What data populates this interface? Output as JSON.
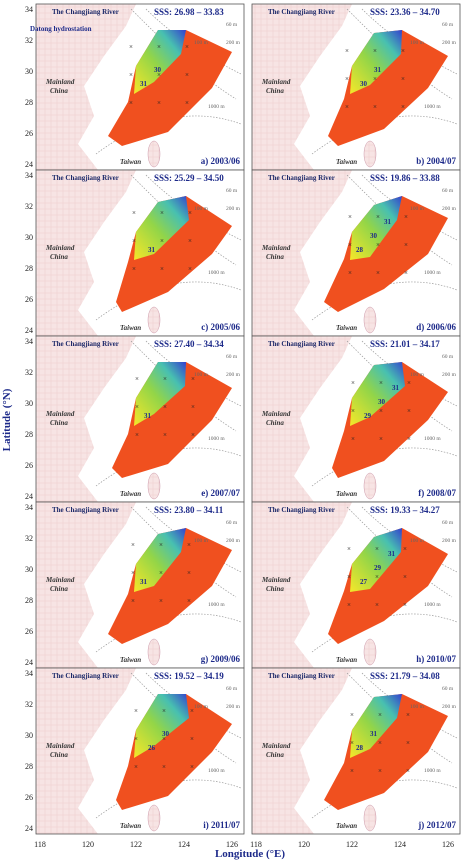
{
  "axes": {
    "y_label": "Latitude (°N)",
    "x_label": "Longitude (°E)",
    "y_ticks": [
      "24",
      "26",
      "28",
      "30",
      "32",
      "34"
    ],
    "x_ticks": [
      "118",
      "120",
      "122",
      "124",
      "126"
    ]
  },
  "common": {
    "river": "The Changjiang River",
    "mainland": [
      "Mainland",
      "China"
    ],
    "taiwan": "Taiwan",
    "depths": [
      "60 m",
      "100 m",
      "200 m",
      "1000 m"
    ],
    "station": "Datong hydrostation"
  },
  "panels": [
    {
      "sss": "SSS: 26.98 – 33.83",
      "label": "a) 2003/06",
      "contours": [
        "31",
        "30"
      ]
    },
    {
      "sss": "SSS: 23.36 – 34.70",
      "label": "b) 2004/07",
      "contours": [
        "30",
        "31"
      ]
    },
    {
      "sss": "SSS: 25.29 – 34.50",
      "label": "c) 2005/06",
      "contours": [
        "31"
      ]
    },
    {
      "sss": "SSS: 19.86 – 33.88",
      "label": "d) 2006/06",
      "contours": [
        "28",
        "30",
        "31"
      ]
    },
    {
      "sss": "SSS: 27.40 – 34.34",
      "label": "e) 2007/07",
      "contours": [
        "31"
      ]
    },
    {
      "sss": "SSS: 21.01 – 34.17",
      "label": "f) 2008/07",
      "contours": [
        "29",
        "30",
        "31"
      ]
    },
    {
      "sss": "SSS: 23.80 – 34.11",
      "label": "g) 2009/06",
      "contours": [
        "31"
      ]
    },
    {
      "sss": "SSS: 19.33 – 34.27",
      "label": "h) 2010/07",
      "contours": [
        "27",
        "29",
        "31"
      ]
    },
    {
      "sss": "SSS: 19.52 – 34.19",
      "label": "i) 2011/07",
      "contours": [
        "26",
        "30"
      ]
    },
    {
      "sss": "SSS: 21.79 – 34.08",
      "label": "j) 2012/07",
      "contours": [
        "28",
        "31"
      ]
    }
  ]
}
